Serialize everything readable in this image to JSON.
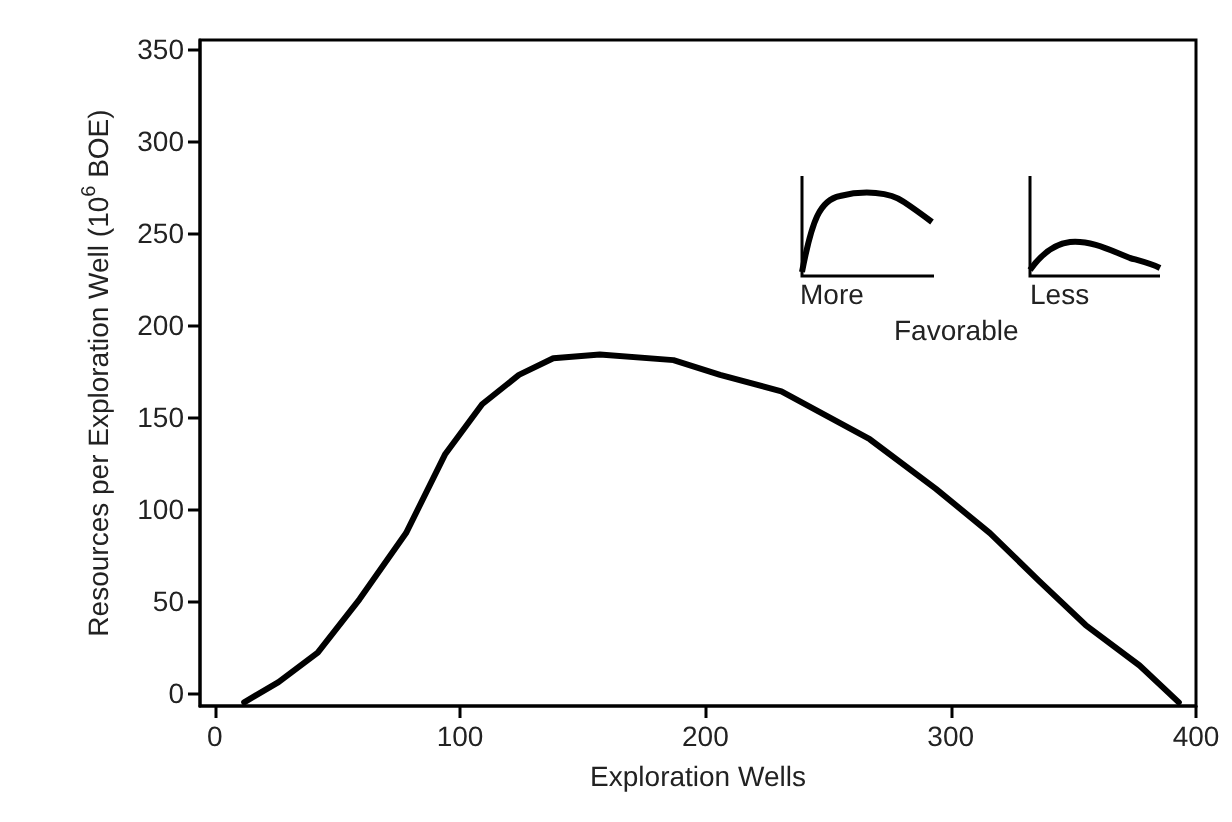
{
  "chart_data": {
    "type": "line",
    "xlabel": "Exploration Wells",
    "ylabel": "Resources per Exploration Well (10$^{6}$ BOE)",
    "x": [
      12,
      26,
      42,
      59,
      78,
      94,
      109,
      124,
      138,
      157,
      187,
      206,
      231,
      267,
      294,
      316,
      336,
      355,
      377,
      393
    ],
    "series": [
      {
        "color": "#000000",
        "values": [
          -5,
          6,
          22,
          51,
          87,
          130,
          157,
          173,
          182,
          184,
          181,
          173,
          164,
          138,
          111,
          87,
          61,
          37,
          15,
          -5
        ]
      }
    ],
    "xlim": [
      -6,
      400
    ],
    "xticks": [
      0,
      100,
      200,
      300,
      400
    ],
    "ylim": [
      -7,
      355
    ],
    "yticks": [
      0,
      50,
      100,
      150,
      200,
      250,
      300,
      350
    ],
    "marker": "none",
    "line_style": "solid",
    "annotations": [
      "More",
      "Less",
      "Favorable"
    ]
  }
}
